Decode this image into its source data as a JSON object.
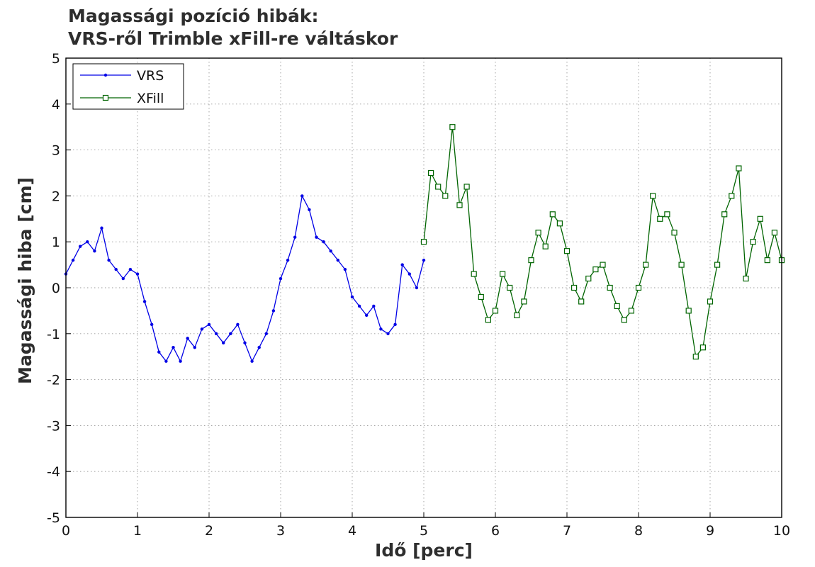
{
  "chart_data": {
    "type": "line",
    "title": [
      "Magassági pozíció hibák:",
      "VRS-ről Trimble xFill-re váltáskor"
    ],
    "xlabel": "Idő [perc]",
    "ylabel": "Magassági hiba [cm]",
    "xlim": [
      0,
      10
    ],
    "ylim": [
      -5,
      5
    ],
    "xticks": [
      "0",
      "1",
      "2",
      "3",
      "4",
      "5",
      "6",
      "7",
      "8",
      "9",
      "10"
    ],
    "yticks": [
      "5",
      "4",
      "3",
      "2",
      "1",
      "0",
      "-1",
      "-2",
      "-3",
      "-4",
      "-5"
    ],
    "grid": true,
    "legend_position": "top-left",
    "series": [
      {
        "name": "VRS",
        "color": "#0000e6",
        "marker": "dot",
        "x": [
          0,
          0.1,
          0.2,
          0.3,
          0.4,
          0.5,
          0.6,
          0.7,
          0.8,
          0.9,
          1.0,
          1.1,
          1.2,
          1.3,
          1.4,
          1.5,
          1.6,
          1.7,
          1.8,
          1.9,
          2.0,
          2.1,
          2.2,
          2.3,
          2.4,
          2.5,
          2.6,
          2.7,
          2.8,
          2.9,
          3.0,
          3.1,
          3.2,
          3.3,
          3.4,
          3.5,
          3.6,
          3.7,
          3.8,
          3.9,
          4.0,
          4.1,
          4.2,
          4.3,
          4.4,
          4.5,
          4.6,
          4.7,
          4.8,
          4.9,
          5.0
        ],
        "y": [
          0.3,
          0.6,
          0.9,
          1.0,
          0.8,
          1.3,
          0.6,
          0.4,
          0.2,
          0.4,
          0.3,
          -0.3,
          -0.8,
          -1.4,
          -1.6,
          -1.3,
          -1.6,
          -1.1,
          -1.3,
          -0.9,
          -0.8,
          -1.0,
          -1.2,
          -1.0,
          -0.8,
          -1.2,
          -1.6,
          -1.3,
          -1.0,
          -0.5,
          0.2,
          0.6,
          1.1,
          2.0,
          1.7,
          1.1,
          1.0,
          0.8,
          0.6,
          0.4,
          -0.2,
          -0.4,
          -0.6,
          -0.4,
          -0.9,
          -1.0,
          -0.8,
          0.5,
          0.3,
          0.0,
          0.6
        ]
      },
      {
        "name": "XFill",
        "color": "#006400",
        "marker": "square",
        "x": [
          5.0,
          5.1,
          5.2,
          5.3,
          5.4,
          5.5,
          5.6,
          5.7,
          5.8,
          5.9,
          6.0,
          6.1,
          6.2,
          6.3,
          6.4,
          6.5,
          6.6,
          6.7,
          6.8,
          6.9,
          7.0,
          7.1,
          7.2,
          7.3,
          7.4,
          7.5,
          7.6,
          7.7,
          7.8,
          7.9,
          8.0,
          8.1,
          8.2,
          8.3,
          8.4,
          8.5,
          8.6,
          8.7,
          8.8,
          8.9,
          9.0,
          9.1,
          9.2,
          9.3,
          9.4,
          9.5,
          9.6,
          9.7,
          9.8,
          9.9,
          10.0
        ],
        "y": [
          1.0,
          2.5,
          2.2,
          2.0,
          3.5,
          1.8,
          2.2,
          0.3,
          -0.2,
          -0.7,
          -0.5,
          0.3,
          0.0,
          -0.6,
          -0.3,
          0.6,
          1.2,
          0.9,
          1.6,
          1.4,
          0.8,
          0.0,
          -0.3,
          0.2,
          0.4,
          0.5,
          0.0,
          -0.4,
          -0.7,
          -0.5,
          0.0,
          0.5,
          2.0,
          1.5,
          1.6,
          1.2,
          0.5,
          -0.5,
          -1.5,
          -1.3,
          -0.3,
          0.5,
          1.6,
          2.0,
          2.6,
          0.2,
          1.0,
          1.5,
          0.6,
          1.2,
          0.6
        ]
      }
    ]
  }
}
